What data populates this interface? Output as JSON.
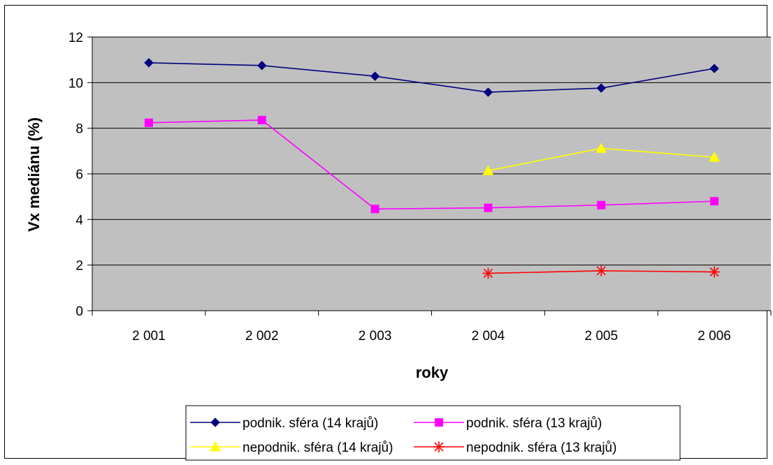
{
  "chart_data": {
    "type": "line",
    "title": "",
    "xlabel": "roky",
    "ylabel": "Vx mediánu (%)",
    "categories": [
      "2 001",
      "2 002",
      "2 003",
      "2 004",
      "2 005",
      "2 006"
    ],
    "ylim": [
      0,
      12
    ],
    "yticks": [
      "0",
      "2",
      "4",
      "6",
      "8",
      "10",
      "12"
    ],
    "grid": true,
    "plot_background": "#c0c0c0",
    "legend_position": "bottom",
    "series": [
      {
        "name": "podnik. sféra (14 krajů)",
        "color": "#000080",
        "marker": "diamond",
        "values": [
          10.87,
          10.75,
          10.28,
          9.58,
          9.76,
          10.62
        ]
      },
      {
        "name": "podnik. sféra (13 krajů)",
        "color": "#ff00ff",
        "marker": "square",
        "values": [
          8.24,
          8.36,
          4.46,
          4.51,
          4.63,
          4.8
        ]
      },
      {
        "name": "nepodnik. sféra (14 krajů)",
        "color": "#ffff00",
        "marker": "triangle",
        "values": [
          null,
          null,
          null,
          6.14,
          7.12,
          6.73
        ]
      },
      {
        "name": "nepodnik. sféra (13 krajů)",
        "color": "#ff0000",
        "marker": "star",
        "values": [
          null,
          null,
          null,
          1.64,
          1.75,
          1.7
        ]
      }
    ]
  }
}
